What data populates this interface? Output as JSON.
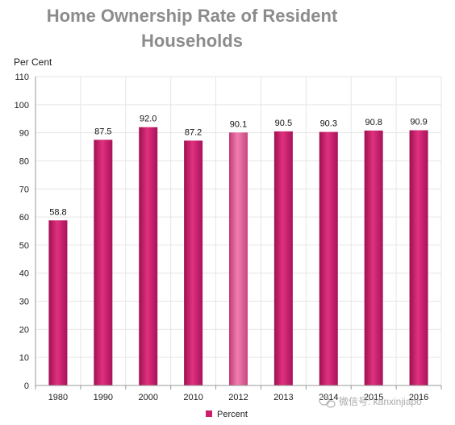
{
  "chart_data": {
    "type": "bar",
    "title_lines": [
      "Home Ownership Rate of Resident",
      "Households"
    ],
    "ylabel": "Per Cent",
    "xlabel": "",
    "categories": [
      "1980",
      "1990",
      "2000",
      "2010",
      "2012",
      "2013",
      "2014",
      "2015",
      "2016"
    ],
    "series": [
      {
        "name": "Percent",
        "values": [
          58.8,
          87.5,
          92.0,
          87.2,
          90.1,
          90.5,
          90.3,
          90.8,
          90.9
        ]
      }
    ],
    "value_labels": [
      "58.8",
      "87.5",
      "92.0",
      "87.2",
      "90.1",
      "90.5",
      "90.3",
      "90.8",
      "90.9"
    ],
    "highlighted_index": 4,
    "ylim": [
      0,
      110
    ],
    "yticks": [
      0,
      10,
      20,
      30,
      40,
      50,
      60,
      70,
      80,
      90,
      100,
      110
    ],
    "grid": true,
    "legend_position": "bottom-center",
    "colors": {
      "bar": "#cc1f6e",
      "bar_highlight": "#e05a92",
      "grid": "#e6e6e6",
      "axis": "#999999"
    }
  },
  "watermark": {
    "text": "微信号: kanxinjiapo"
  }
}
